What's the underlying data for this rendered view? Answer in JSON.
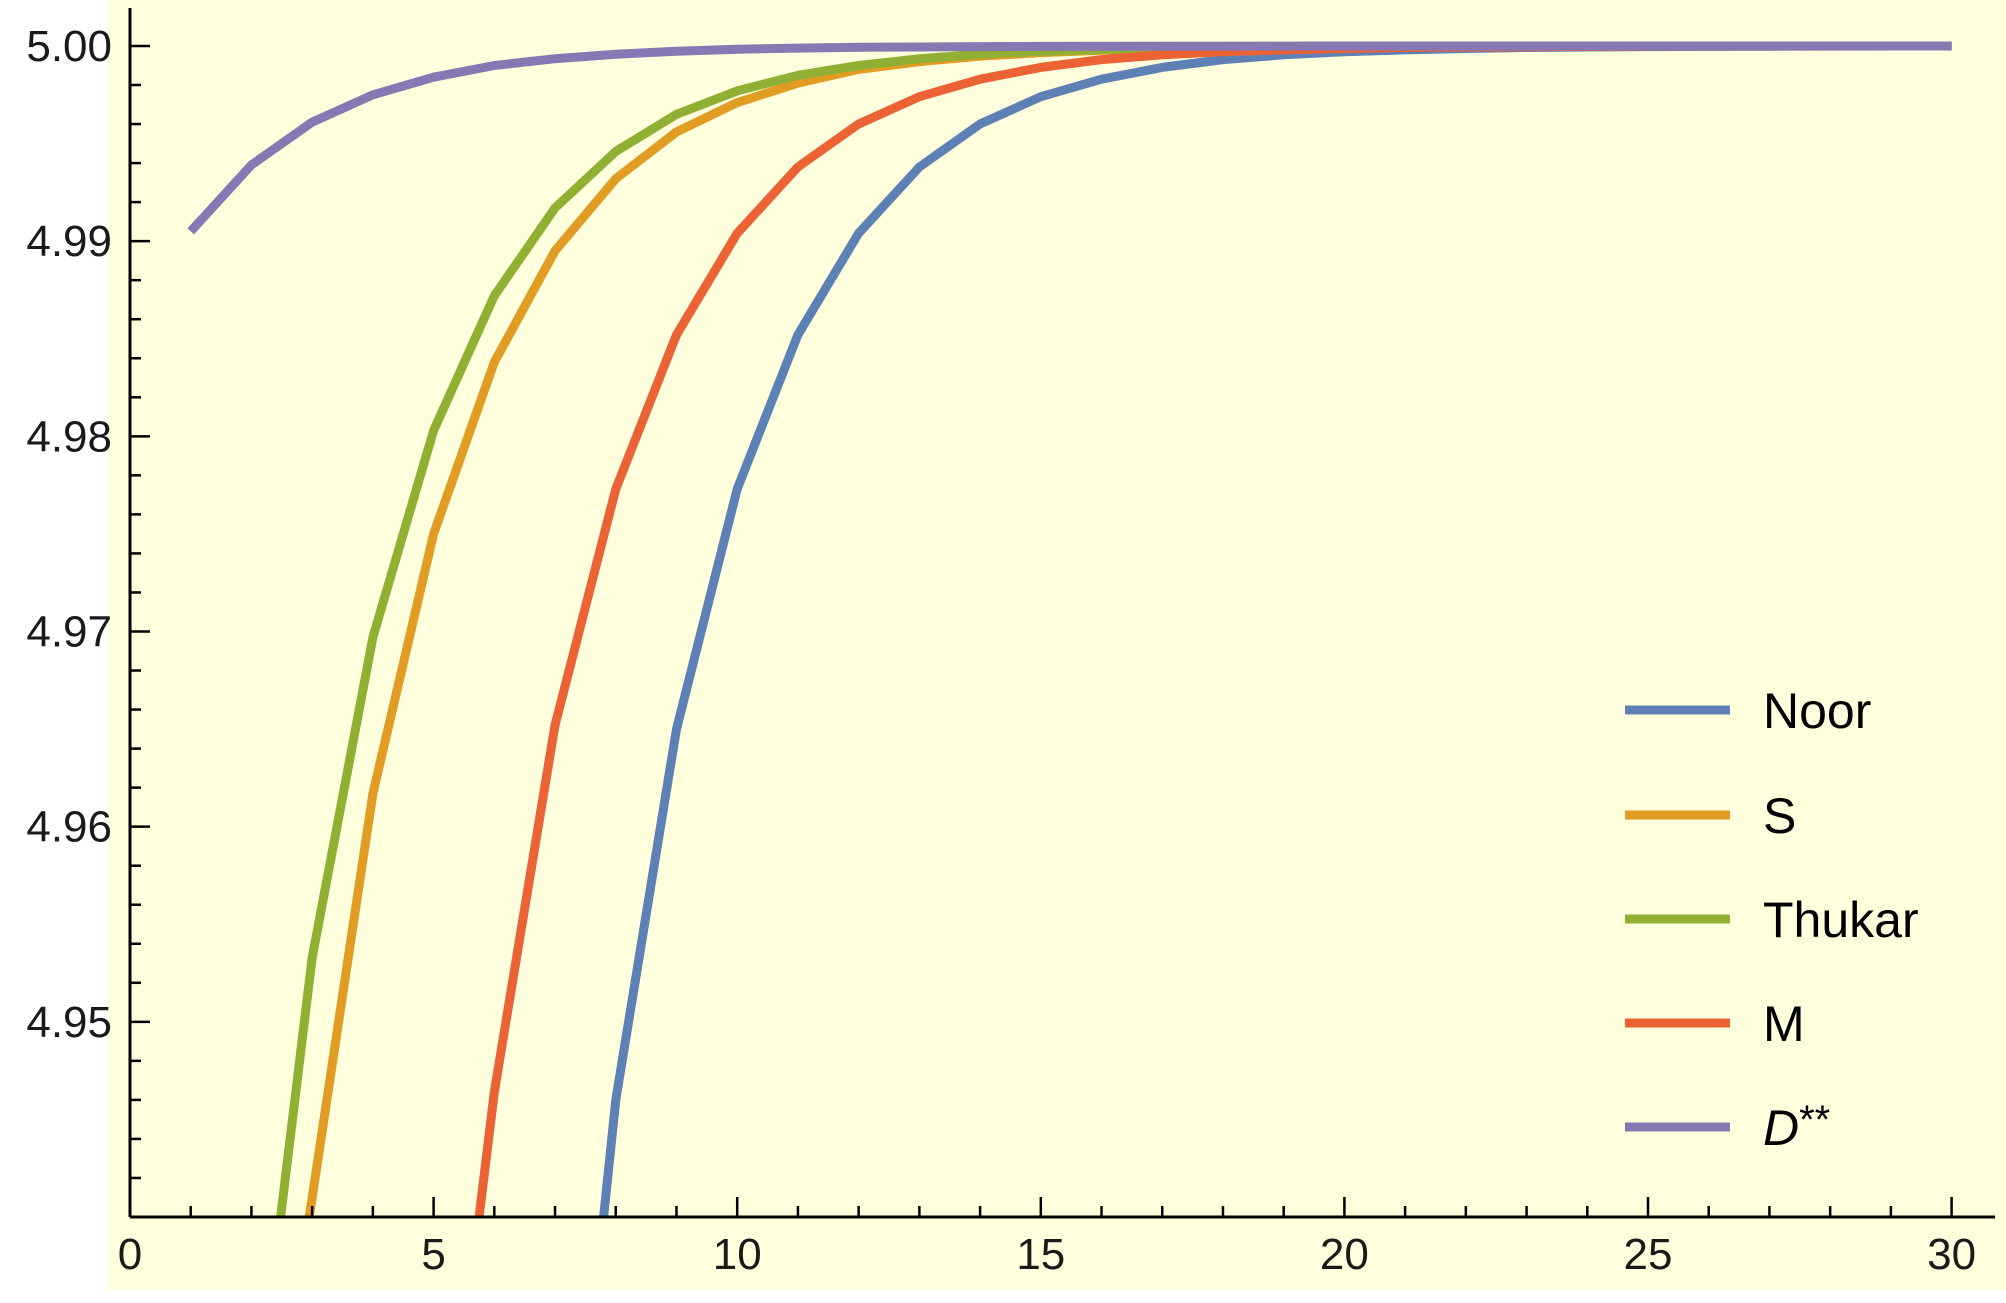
{
  "chart_data": {
    "type": "line",
    "title": "",
    "xlabel": "",
    "ylabel": "",
    "xlim": [
      0,
      30.7
    ],
    "ylim": [
      4.94,
      5.0
    ],
    "x_ticks": [
      0,
      5,
      10,
      15,
      20,
      25,
      30
    ],
    "x_tick_labels": [
      "0",
      "5",
      "10",
      "15",
      "20",
      "25",
      "30"
    ],
    "y_ticks": [
      4.95,
      4.96,
      4.97,
      4.98,
      4.99,
      5.0
    ],
    "y_tick_labels": [
      "4.95",
      "4.96",
      "4.97",
      "4.98",
      "4.99",
      "5.00"
    ],
    "grid": false,
    "background": "#ffffdd",
    "legend_position": "bottom-right",
    "series": [
      {
        "name": "Noor",
        "color": "#5e81b5",
        "x": [
          7.8,
          8,
          9,
          10,
          11,
          12,
          13,
          14,
          15,
          16,
          17,
          18,
          19,
          20,
          21,
          22,
          23,
          24,
          25,
          26,
          27,
          28,
          29,
          30
        ],
        "y": [
          4.94,
          4.946,
          4.965,
          4.9773,
          4.9852,
          4.9904,
          4.9938,
          4.996,
          4.9974,
          4.9983,
          4.9989,
          4.9993,
          4.99955,
          4.9997,
          4.9998,
          4.99987,
          4.99992,
          4.99995,
          4.99997,
          4.99998,
          4.99999,
          5.0,
          5.0,
          5.0
        ]
      },
      {
        "name": "S",
        "color": "#e19c24",
        "x": [
          2.95,
          3,
          4,
          5,
          6,
          7,
          8,
          9,
          10,
          11,
          12,
          13,
          14,
          15,
          16,
          17,
          18,
          19,
          20,
          25,
          30
        ],
        "y": [
          4.94,
          4.941,
          4.9617,
          4.975,
          4.9838,
          4.9895,
          4.9932,
          4.9956,
          4.9971,
          4.9981,
          4.9988,
          4.9992,
          4.99948,
          4.99966,
          4.99978,
          4.99986,
          4.99991,
          4.99994,
          4.99996,
          5.0,
          5.0
        ]
      },
      {
        "name": "Thukar",
        "color": "#8fb032",
        "x": [
          2.48,
          3,
          4,
          5,
          6,
          7,
          8,
          9,
          10,
          11,
          12,
          13,
          14,
          15,
          16,
          17,
          18,
          19,
          20,
          25,
          30
        ],
        "y": [
          4.94,
          4.9533,
          4.9697,
          4.9803,
          4.9872,
          4.9917,
          4.9946,
          4.9965,
          4.9977,
          4.9985,
          4.999,
          4.99935,
          4.99958,
          4.99973,
          4.99982,
          4.99988,
          4.99992,
          4.99995,
          4.99997,
          5.0,
          5.0
        ]
      },
      {
        "name": "M",
        "color": "#eb6235",
        "x": [
          5.75,
          6,
          7,
          8,
          9,
          10,
          11,
          12,
          13,
          14,
          15,
          16,
          17,
          18,
          19,
          20,
          21,
          22,
          25,
          30
        ],
        "y": [
          4.94,
          4.9464,
          4.9652,
          4.9773,
          4.9852,
          4.9904,
          4.9938,
          4.996,
          4.9974,
          4.9983,
          4.9989,
          4.9993,
          4.99955,
          4.9997,
          4.9998,
          4.99987,
          4.99992,
          4.99995,
          4.99999,
          5.0
        ]
      },
      {
        "name": "D**",
        "color": "#8778b3",
        "x": [
          1,
          2,
          3,
          4,
          5,
          6,
          7,
          8,
          9,
          10,
          11,
          12,
          13,
          14,
          15,
          20,
          25,
          30
        ],
        "y": [
          4.9905,
          4.9939,
          4.9961,
          4.9975,
          4.9984,
          4.999,
          4.99935,
          4.99958,
          4.99973,
          4.99983,
          4.99989,
          4.99993,
          4.99995,
          4.99997,
          4.99998,
          5.0,
          5.0,
          5.0
        ]
      }
    ]
  }
}
